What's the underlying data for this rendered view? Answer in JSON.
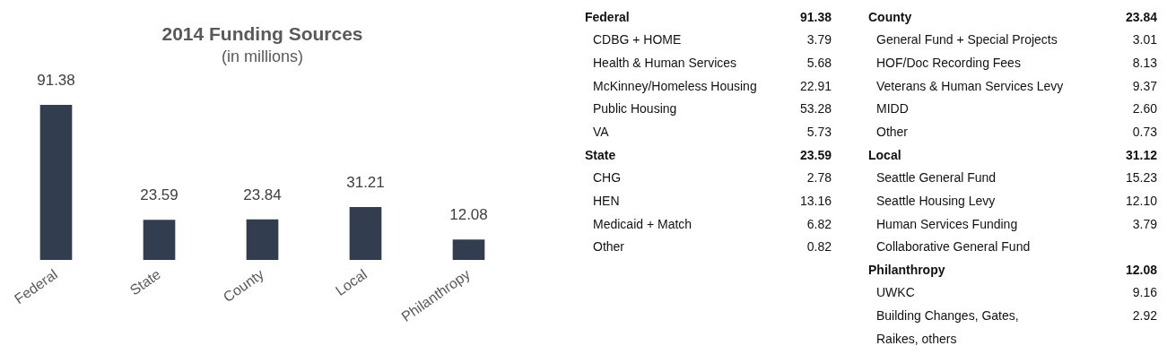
{
  "chart_data": [
    {
      "type": "bar",
      "title": "2014 Funding Sources",
      "subtitle": "(in millions)",
      "categories": [
        "Federal",
        "State",
        "County",
        "Local",
        "Philanthropy"
      ],
      "values": [
        91.38,
        23.59,
        23.84,
        31.21,
        12.08
      ],
      "color": "#323d4f",
      "data_labels": true
    },
    {
      "type": "other",
      "title": "Federal",
      "totals": [
        "91.38"
      ],
      "categories": [
        "CDBG + HOME",
        "Health & Human Services",
        "McKinney/Homeless Housing",
        "Public Housing",
        "VA"
      ],
      "values": [
        3.79,
        5.68,
        22.91,
        53.28,
        5.73
      ],
      "value_labels": [
        "3.79",
        "5.68",
        "22.91",
        "53.28",
        "5.73"
      ]
    },
    {
      "type": "other",
      "title": "State",
      "totals": [
        "23.59"
      ],
      "categories": [
        "CHG",
        "HEN",
        "Medicaid + Match",
        "Other"
      ],
      "values": [
        2.78,
        13.16,
        6.82,
        0.82
      ],
      "value_labels": [
        "2.78",
        "13.16",
        "6.82",
        "0.82"
      ]
    },
    {
      "type": "other",
      "title": "County",
      "totals": [
        "23.84"
      ],
      "categories": [
        "General Fund + Special Projects",
        "HOF/Doc Recording Fees",
        "Veterans & Human Services Levy",
        "MIDD",
        "Other"
      ],
      "values": [
        3.01,
        8.13,
        9.37,
        2.6,
        0.73
      ],
      "value_labels": [
        "3.01",
        "8.13",
        "9.37",
        "2.60",
        "0.73"
      ]
    },
    {
      "type": "other",
      "title": "Local",
      "totals": [
        "31.12"
      ],
      "categories": [
        "Seattle General Fund",
        "Seattle Housing Levy",
        "Human Services Funding",
        "Collaborative General Fund"
      ],
      "values": [
        15.23,
        12.1,
        3.79,
        null
      ],
      "value_labels": [
        "15.23",
        "12.10",
        "3.79",
        null
      ]
    },
    {
      "type": "other",
      "title": "Philanthropy",
      "totals": [
        "12.08"
      ],
      "categories": [
        "UWKC",
        "Building Changes, Gates, Raikes, others"
      ],
      "values": [
        9.16,
        2.92
      ],
      "value_labels": [
        "9.16",
        "2.92"
      ]
    }
  ]
}
